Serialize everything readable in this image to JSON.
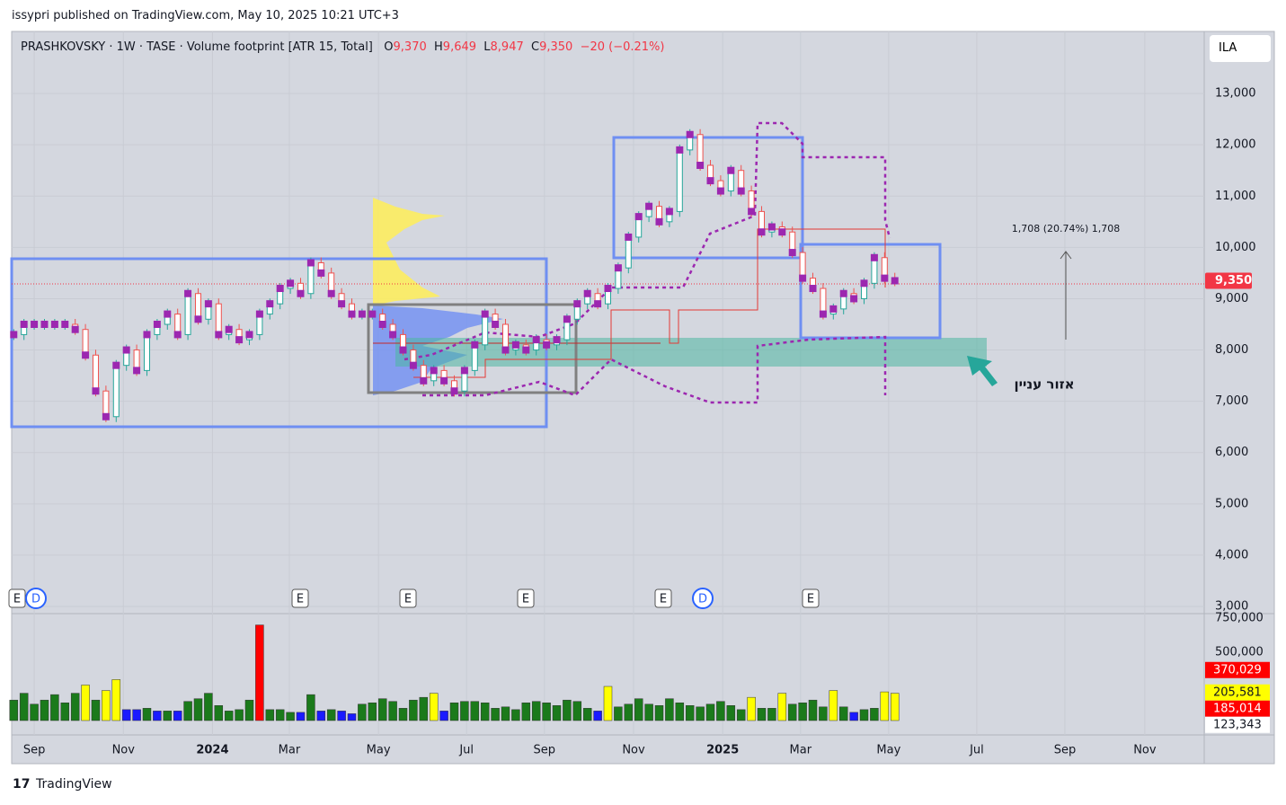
{
  "header": {
    "text": "issypri published on TradingView.com, May 10, 2025 10:21 UTC+3"
  },
  "legend": {
    "symbol": "PRASHKOVSKY · 1W · TASE · Volume footprint [ATR 15, Total]",
    "o_label": "O",
    "o": "9,370",
    "h_label": "H",
    "h": "9,649",
    "l_label": "L",
    "l": "8,947",
    "c_label": "C",
    "c": "9,350",
    "change": "−20 (−0.21%)"
  },
  "currency": "ILA",
  "annotation": {
    "measure": "1,708 (20.74%) 1,708",
    "zone": "אזור עניין"
  },
  "events": [
    "E",
    "D",
    "E",
    "E",
    "E",
    "E",
    "D",
    "E"
  ],
  "footer": "TradingView",
  "chart_data": {
    "type": "candlestick",
    "values": [
      8300,
      8500,
      8500,
      8500,
      8500,
      8500,
      8400,
      7900,
      7200,
      6700,
      7700,
      8000,
      7600,
      8300,
      8500,
      8700,
      8300,
      9100,
      8600,
      8900,
      8300,
      8400,
      8200,
      8300,
      8700,
      8900,
      9200,
      9300,
      9100,
      9700,
      9500,
      9100,
      8900,
      8700,
      8700,
      8700,
      8500,
      8300,
      8000,
      7700,
      7400,
      7600,
      7400,
      7200,
      7600,
      8100,
      8700,
      8500,
      8000,
      8100,
      8000,
      8200,
      8100,
      8200,
      8600,
      8900,
      9100,
      8900,
      9200,
      9600,
      10200,
      10600,
      10800,
      10500,
      10700,
      11900,
      12200,
      11600,
      11300,
      11100,
      11500,
      11100,
      10700,
      10300,
      10400,
      10300,
      9900,
      9400,
      9200,
      8700,
      8800,
      9100,
      9000,
      9300,
      9800,
      9400,
      9350
    ],
    "up_color": "#26a69a",
    "down_color": "#ef5350",
    "poc_color": "#9c27b0",
    "xlim": [
      -0.2,
      116.2
    ],
    "xticks": [
      {
        "value": 2,
        "label": "Sep"
      },
      {
        "value": 10.7,
        "label": "Nov"
      },
      {
        "value": 19.4,
        "label": "2024"
      },
      {
        "value": 26.9,
        "label": "Mar"
      },
      {
        "value": 35.6,
        "label": "May"
      },
      {
        "value": 44.2,
        "label": "Jul"
      },
      {
        "value": 51.8,
        "label": "Sep"
      },
      {
        "value": 60.5,
        "label": "Nov"
      },
      {
        "value": 69.2,
        "label": "2025"
      },
      {
        "value": 76.8,
        "label": "Mar"
      },
      {
        "value": 85.4,
        "label": "May"
      },
      {
        "value": 94,
        "label": "Jul"
      },
      {
        "value": 102.6,
        "label": "Sep"
      },
      {
        "value": 110.4,
        "label": "Nov"
      }
    ],
    "ylim": [
      2860,
      14210
    ],
    "yticks": [
      {
        "value": 3000,
        "label": "3,000"
      },
      {
        "value": 4000,
        "label": "4,000"
      },
      {
        "value": 5000,
        "label": "5,000"
      },
      {
        "value": 6000,
        "label": "6,000"
      },
      {
        "value": 7000,
        "label": "7,000"
      },
      {
        "value": 8000,
        "label": "8,000"
      },
      {
        "value": 9000,
        "label": "9,000"
      },
      {
        "value": 10000,
        "label": "10,000"
      },
      {
        "value": 11000,
        "label": "11,000"
      },
      {
        "value": 12000,
        "label": "12,000"
      },
      {
        "value": 13000,
        "label": "13,000"
      }
    ],
    "grid": true,
    "price_label": {
      "value": 9350,
      "label": "9,350",
      "color": "#f23645"
    },
    "volume": [
      150000,
      200000,
      120000,
      150000,
      190000,
      130000,
      200000,
      260000,
      150000,
      220000,
      300000,
      80000,
      80000,
      90000,
      70000,
      70000,
      70000,
      140000,
      160000,
      200000,
      110000,
      70000,
      80000,
      150000,
      700000,
      80000,
      80000,
      60000,
      60000,
      190000,
      70000,
      80000,
      70000,
      50000,
      120000,
      130000,
      160000,
      140000,
      90000,
      150000,
      170000,
      200000,
      70000,
      130000,
      140000,
      140000,
      130000,
      90000,
      100000,
      80000,
      130000,
      140000,
      130000,
      110000,
      150000,
      140000,
      90000,
      70000,
      250000,
      100000,
      120000,
      160000,
      120000,
      110000,
      160000,
      130000,
      110000,
      100000,
      120000,
      140000,
      110000,
      80000,
      170000,
      90000,
      90000,
      200000,
      120000,
      130000,
      150000,
      100000,
      220000,
      100000,
      60000,
      80000,
      90000,
      210000,
      200000
    ],
    "volume_colors": [
      "#1b7a1b",
      "#1b7a1b",
      "#1b7a1b",
      "#1b7a1b",
      "#1b7a1b",
      "#1b7a1b",
      "#1b7a1b",
      "#ffff00",
      "#1b7a1b",
      "#ffff00",
      "#ffff00",
      "#1a1aff",
      "#1a1aff",
      "#1b7a1b",
      "#1a1aff",
      "#1b7a1b",
      "#1a1aff",
      "#1b7a1b",
      "#1b7a1b",
      "#1b7a1b",
      "#1b7a1b",
      "#1b7a1b",
      "#1b7a1b",
      "#1b7a1b",
      "#ff0000",
      "#1b7a1b",
      "#1b7a1b",
      "#1b7a1b",
      "#1a1aff",
      "#1b7a1b",
      "#1a1aff",
      "#1b7a1b",
      "#1a1aff",
      "#1a1aff",
      "#1b7a1b",
      "#1b7a1b",
      "#1b7a1b",
      "#1b7a1b",
      "#1b7a1b",
      "#1b7a1b",
      "#1b7a1b",
      "#ffff00",
      "#1a1aff",
      "#1b7a1b",
      "#1b7a1b",
      "#1b7a1b",
      "#1b7a1b",
      "#1b7a1b",
      "#1b7a1b",
      "#1b7a1b",
      "#1b7a1b",
      "#1b7a1b",
      "#1b7a1b",
      "#1b7a1b",
      "#1b7a1b",
      "#1b7a1b",
      "#1b7a1b",
      "#1a1aff",
      "#ffff00",
      "#1b7a1b",
      "#1b7a1b",
      "#1b7a1b",
      "#1b7a1b",
      "#1b7a1b",
      "#1b7a1b",
      "#1b7a1b",
      "#1b7a1b",
      "#1b7a1b",
      "#1b7a1b",
      "#1b7a1b",
      "#1b7a1b",
      "#1b7a1b",
      "#ffff00",
      "#1b7a1b",
      "#1b7a1b",
      "#ffff00",
      "#1b7a1b",
      "#1b7a1b",
      "#1b7a1b",
      "#1b7a1b",
      "#ffff00",
      "#1b7a1b",
      "#1a1aff",
      "#1b7a1b",
      "#1b7a1b",
      "#ffff00",
      "#ffff00"
    ],
    "vlim": [
      0,
      783000
    ],
    "vticks": [
      {
        "value": 500000,
        "label": "500,000"
      },
      {
        "value": 750000,
        "label": "750,000"
      }
    ],
    "volume_labels": [
      {
        "value": 370029,
        "label": "370,029",
        "color": "#ff0000"
      },
      {
        "value": 205581,
        "label": "205,581",
        "color": "#ffff00"
      },
      {
        "value": 185014,
        "label": "185,014",
        "color": "#ff0000"
      },
      {
        "value": 123343,
        "label": "123,343",
        "color": "#ffffff"
      }
    ]
  }
}
